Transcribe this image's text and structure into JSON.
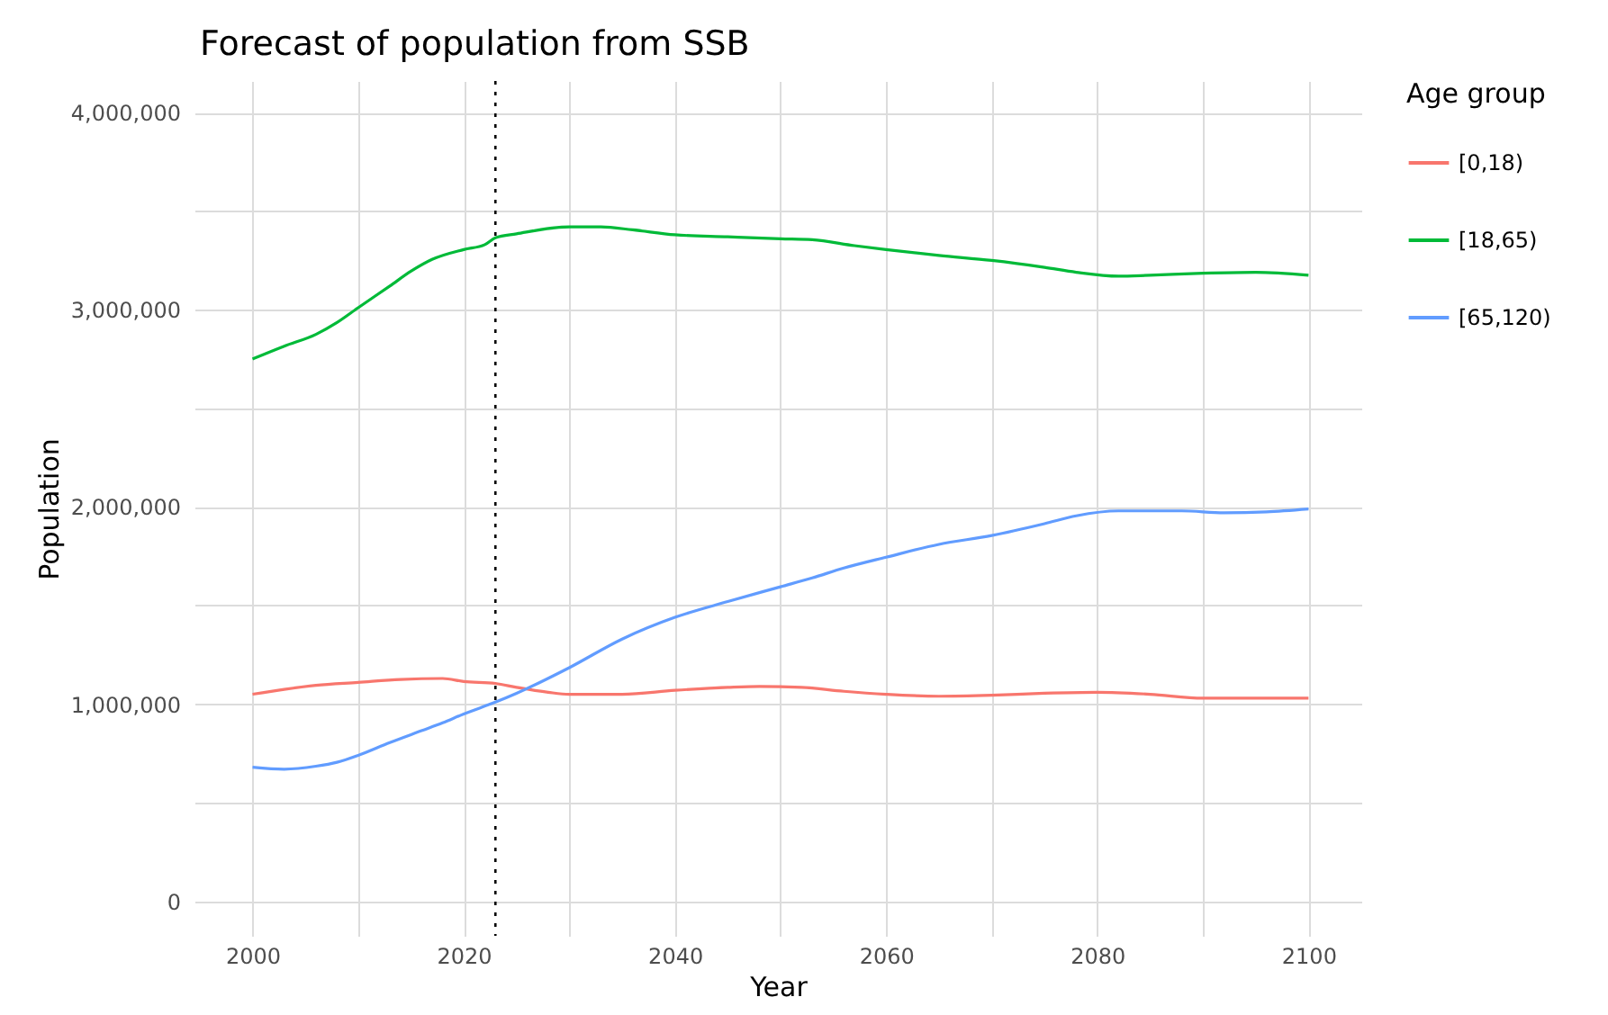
{
  "chart_data": {
    "type": "line",
    "title": "Forecast of population from SSB",
    "xlabel": "Year",
    "ylabel": "Population",
    "legend_title": "Age group",
    "legend": "right",
    "grid": true,
    "line_style": "solid",
    "marker": "none",
    "xlim": [
      1994.5,
      2105
    ],
    "xticks": [
      2000,
      {
        "value": 2010,
        "label": null
      },
      2020,
      {
        "value": 2030,
        "label": null
      },
      2040,
      {
        "value": 2050,
        "label": null
      },
      2060,
      {
        "value": 2070,
        "label": null
      },
      2080,
      {
        "value": 2090,
        "label": null
      },
      2100
    ],
    "ylim": [
      -175000,
      4160000
    ],
    "yticks": [
      {
        "value": 0,
        "label": "0"
      },
      {
        "value": 500000,
        "label": null
      },
      {
        "value": 1000000,
        "label": "1,000,000"
      },
      {
        "value": 1500000,
        "label": null
      },
      {
        "value": 2000000,
        "label": "2,000,000"
      },
      {
        "value": 2500000,
        "label": null
      },
      {
        "value": 3000000,
        "label": "3,000,000"
      },
      {
        "value": 3500000,
        "label": null
      },
      {
        "value": 4000000,
        "label": "4,000,000"
      }
    ],
    "ref_lines": [
      {
        "axis": "x",
        "value": 2023,
        "line_style": "dotted",
        "color": "#000000"
      }
    ],
    "series": [
      {
        "name": "[0,18)",
        "color": "#f8766d",
        "x": [
          2000,
          2003,
          2006,
          2010,
          2014,
          2018,
          2020,
          2023,
          2025,
          2028,
          2030,
          2035,
          2040,
          2045,
          2048,
          2052,
          2056,
          2060,
          2065,
          2070,
          2075,
          2080,
          2085,
          2090,
          2095,
          2100
        ],
        "values": [
          1050000,
          1075000,
          1095000,
          1110000,
          1125000,
          1130000,
          1115000,
          1105000,
          1085000,
          1060000,
          1050000,
          1050000,
          1070000,
          1085000,
          1090000,
          1085000,
          1065000,
          1050000,
          1040000,
          1045000,
          1055000,
          1060000,
          1050000,
          1030000,
          1030000,
          1030000
        ]
      },
      {
        "name": "[18,65)",
        "color": "#00ba38",
        "x": [
          2000,
          2003,
          2006,
          2008,
          2010,
          2013,
          2015,
          2017,
          2020,
          2022,
          2023,
          2025,
          2030,
          2033,
          2036,
          2040,
          2045,
          2050,
          2053,
          2057,
          2060,
          2065,
          2070,
          2075,
          2078,
          2082,
          2085,
          2090,
          2095,
          2100
        ],
        "values": [
          2750000,
          2815000,
          2875000,
          2935000,
          3010000,
          3120000,
          3195000,
          3255000,
          3305000,
          3330000,
          3365000,
          3385000,
          3420000,
          3420000,
          3405000,
          3380000,
          3370000,
          3360000,
          3355000,
          3325000,
          3305000,
          3275000,
          3250000,
          3215000,
          3190000,
          3170000,
          3175000,
          3185000,
          3190000,
          3175000
        ]
      },
      {
        "name": "[65,120)",
        "color": "#619cff",
        "x": [
          2000,
          2003,
          2006,
          2008,
          2010,
          2013,
          2016,
          2018,
          2020,
          2023,
          2025,
          2030,
          2035,
          2040,
          2045,
          2050,
          2053,
          2056,
          2060,
          2065,
          2070,
          2075,
          2078,
          2082,
          2088,
          2092,
          2096,
          2100
        ],
        "values": [
          680000,
          670000,
          685000,
          705000,
          740000,
          805000,
          865000,
          905000,
          950000,
          1010000,
          1055000,
          1185000,
          1330000,
          1440000,
          1520000,
          1595000,
          1640000,
          1690000,
          1745000,
          1810000,
          1855000,
          1915000,
          1955000,
          1980000,
          1980000,
          1970000,
          1975000,
          1990000
        ]
      }
    ]
  }
}
